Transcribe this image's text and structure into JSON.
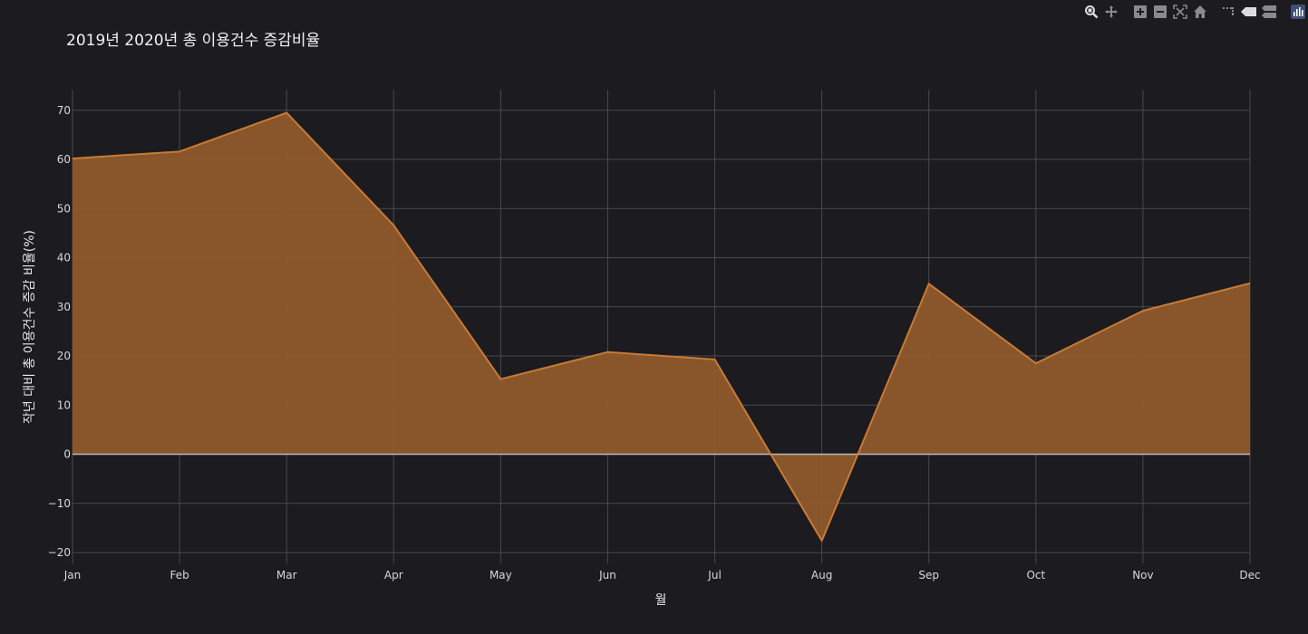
{
  "chart_data": {
    "type": "area",
    "title": "2019년 2020년 총 이용건수 증감비율",
    "xlabel": "월",
    "ylabel": "작년 대비 총 이용건수 증감 비율(%)",
    "categories": [
      "Jan",
      "Feb",
      "Mar",
      "Apr",
      "May",
      "Jun",
      "Jul",
      "Aug",
      "Sep",
      "Oct",
      "Nov",
      "Dec"
    ],
    "series": [
      {
        "values": [
          60.2,
          61.6,
          69.5,
          46.6,
          15.3,
          20.8,
          19.3,
          -17.6,
          34.7,
          18.5,
          29.2,
          34.8
        ]
      }
    ],
    "y_ticks": [
      -20,
      -10,
      0,
      10,
      20,
      30,
      40,
      50,
      60,
      70
    ],
    "ylim": [
      -22.2,
      74.2
    ],
    "grid": true,
    "fill_to": "zero",
    "colors": {
      "line": "#c97a36",
      "fill": "#8e5a2b",
      "grid": "#4a494d",
      "zero": "#b9b9b9",
      "background": "#1c1b1f"
    }
  },
  "modebar": [
    {
      "icon": "zoom-icon"
    },
    {
      "icon": "pan-icon"
    },
    {
      "icon": "zoom-in-icon"
    },
    {
      "icon": "zoom-out-icon"
    },
    {
      "icon": "autoscale-icon"
    },
    {
      "icon": "reset-axes-icon"
    },
    {
      "icon": "spike-lines-icon"
    },
    {
      "icon": "hover-closest-icon"
    },
    {
      "icon": "hover-compare-icon"
    },
    {
      "icon": "plotly-logo-icon"
    }
  ]
}
